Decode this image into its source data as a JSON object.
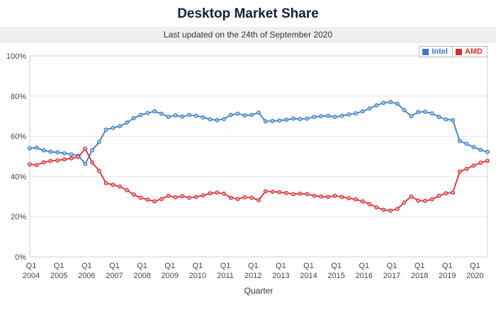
{
  "header": {
    "title": "Desktop Market Share",
    "subtitle": "Last updated on the 24th of September 2020"
  },
  "chart_data": {
    "type": "line",
    "title": "Desktop Market Share",
    "xlabel": "Quarter",
    "ylabel": "",
    "ylim": [
      0,
      100
    ],
    "y_ticks": [
      0,
      20,
      40,
      60,
      80,
      100
    ],
    "y_tick_suffix": "%",
    "grid": "horizontal",
    "legend_position": "top-right",
    "categories": [
      "Q1 2004",
      "Q2 2004",
      "Q3 2004",
      "Q4 2004",
      "Q1 2005",
      "Q2 2005",
      "Q3 2005",
      "Q4 2005",
      "Q1 2006",
      "Q2 2006",
      "Q3 2006",
      "Q4 2006",
      "Q1 2007",
      "Q2 2007",
      "Q3 2007",
      "Q4 2007",
      "Q1 2008",
      "Q2 2008",
      "Q3 2008",
      "Q4 2008",
      "Q1 2009",
      "Q2 2009",
      "Q3 2009",
      "Q4 2009",
      "Q1 2010",
      "Q2 2010",
      "Q3 2010",
      "Q4 2010",
      "Q1 2011",
      "Q2 2011",
      "Q3 2011",
      "Q4 2011",
      "Q1 2012",
      "Q2 2012",
      "Q3 2012",
      "Q4 2012",
      "Q1 2013",
      "Q2 2013",
      "Q3 2013",
      "Q4 2013",
      "Q1 2014",
      "Q2 2014",
      "Q3 2014",
      "Q4 2014",
      "Q1 2015",
      "Q2 2015",
      "Q3 2015",
      "Q4 2015",
      "Q1 2016",
      "Q2 2016",
      "Q3 2016",
      "Q4 2016",
      "Q1 2017",
      "Q2 2017",
      "Q3 2017",
      "Q4 2017",
      "Q1 2018",
      "Q2 2018",
      "Q3 2018",
      "Q4 2018",
      "Q1 2019",
      "Q2 2019",
      "Q3 2019",
      "Q4 2019",
      "Q1 2020",
      "Q2 2020",
      "Q3 2020"
    ],
    "series": [
      {
        "name": "Intel",
        "color": "#3a7bc8",
        "marker_fill": "#a9c7e8",
        "values": [
          54.0,
          54.3,
          53.0,
          52.3,
          52.0,
          51.5,
          51.0,
          50.3,
          46.2,
          53.0,
          57.2,
          63.3,
          64.2,
          65.0,
          66.8,
          69.0,
          70.6,
          71.6,
          72.4,
          71.2,
          69.6,
          70.4,
          69.8,
          70.6,
          70.2,
          69.4,
          68.4,
          68.0,
          68.6,
          70.6,
          71.2,
          70.4,
          70.6,
          71.8,
          67.4,
          67.6,
          67.8,
          68.2,
          68.8,
          68.6,
          68.8,
          69.6,
          70.0,
          70.2,
          69.6,
          70.2,
          70.8,
          71.4,
          72.4,
          73.8,
          75.4,
          76.6,
          77.0,
          76.2,
          73.0,
          70.0,
          72.0,
          72.2,
          71.4,
          69.6,
          68.4,
          68.0,
          57.6,
          56.2,
          54.6,
          53.2,
          52.2
        ]
      },
      {
        "name": "AMD",
        "color": "#d63031",
        "marker_fill": "#f1a3a3",
        "values": [
          46.0,
          45.7,
          47.0,
          47.7,
          48.0,
          48.5,
          49.0,
          49.7,
          53.8,
          47.0,
          42.8,
          36.7,
          35.8,
          35.0,
          33.2,
          31.0,
          29.4,
          28.4,
          27.6,
          28.8,
          30.4,
          29.6,
          30.2,
          29.4,
          29.8,
          30.6,
          31.6,
          32.0,
          31.4,
          29.4,
          28.8,
          29.6,
          29.4,
          28.2,
          32.6,
          32.4,
          32.2,
          31.8,
          31.2,
          31.4,
          31.2,
          30.4,
          30.0,
          29.8,
          30.4,
          29.8,
          29.2,
          28.6,
          27.6,
          26.2,
          24.6,
          23.4,
          23.0,
          23.8,
          27.0,
          30.0,
          28.0,
          27.8,
          28.6,
          30.4,
          31.6,
          32.0,
          42.4,
          43.8,
          45.4,
          46.8,
          47.8
        ]
      }
    ]
  }
}
